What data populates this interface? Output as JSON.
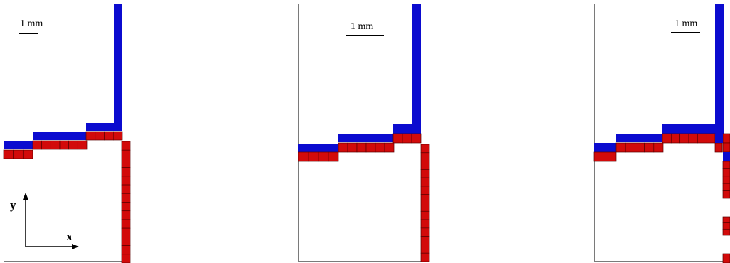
{
  "figure": {
    "colors": {
      "blue_band": "#0b0bcf",
      "red_band": "#d20a0a",
      "cell_grid": "#5a0000",
      "frame": "#7a7a7a",
      "background": "#ffffff"
    },
    "panels": [
      {
        "id": "a",
        "scale_label": "1 mm",
        "show_axes": true
      },
      {
        "id": "b",
        "scale_label": "1 mm",
        "show_axes": false
      },
      {
        "id": "c",
        "scale_label": "1 mm",
        "show_axes": false
      }
    ],
    "axes": {
      "x_label": "x",
      "y_label": "y"
    }
  }
}
